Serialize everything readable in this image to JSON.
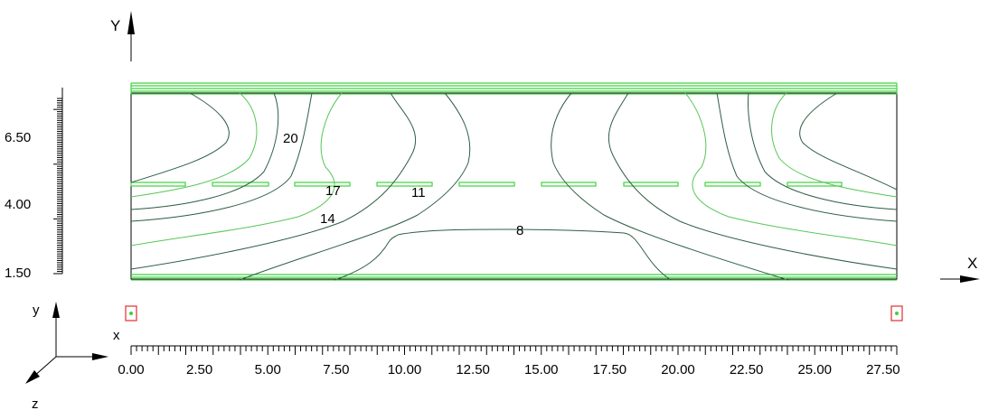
{
  "axes": {
    "x_title": "X",
    "y_title": "Y",
    "x_ticks": [
      "0.00",
      "2.50",
      "5.00",
      "7.50",
      "10.00",
      "12.50",
      "15.00",
      "17.50",
      "20.00",
      "22.50",
      "25.00",
      "27.50"
    ],
    "y_ticks": [
      "1.50",
      "4.00",
      "6.50"
    ]
  },
  "triad": {
    "x": "x",
    "y": "y",
    "z": "z"
  },
  "contour_labels": [
    "20",
    "17",
    "11",
    "14",
    "8"
  ],
  "colors": {
    "wall": "#3ed33e",
    "contour_dark": "#2f5e44",
    "contour_light": "#59c659",
    "marker_box": "#e03030",
    "marker_dot": "#3ed33e",
    "frame": "#000000"
  }
}
